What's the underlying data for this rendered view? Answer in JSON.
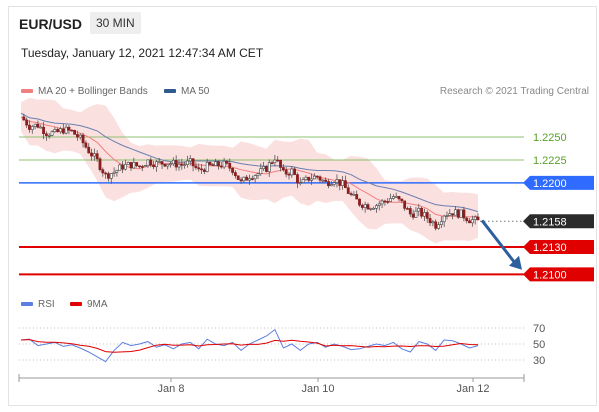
{
  "header": {
    "symbol": "EUR/USD",
    "timeframe": "30 MIN",
    "datetime": "Tuesday, January 12, 2021 12:47:34 AM CET",
    "credit": "Research © 2021 Trading Central"
  },
  "legend_main": [
    {
      "label": "MA 20 + Bollinger Bands",
      "color": "#f08080"
    },
    {
      "label": "MA 50",
      "color": "#2f5b8f"
    }
  ],
  "legend_rsi": [
    {
      "label": "RSI",
      "color": "#5b7fe0"
    },
    {
      "label": "9MA",
      "color": "#e00000"
    }
  ],
  "chart_data": [
    {
      "type": "candlestick",
      "ylim": [
        1.2083,
        1.2285
      ],
      "x_tick_labels": [
        "Jan 8",
        "Jan 10",
        "Jan 12"
      ],
      "close_path": [
        1.2272,
        1.2262,
        1.2263,
        1.2255,
        1.2254,
        1.2258,
        1.2256,
        1.2248,
        1.2235,
        1.2224,
        1.2208,
        1.2212,
        1.2218,
        1.222,
        1.2218,
        1.2224,
        1.2221,
        1.2222,
        1.2221,
        1.222,
        1.2222,
        1.2213,
        1.2218,
        1.2219,
        1.222,
        1.2215,
        1.22,
        1.2208,
        1.221,
        1.2216,
        1.2228,
        1.221,
        1.2213,
        1.2198,
        1.2205,
        1.2207,
        1.22,
        1.2204,
        1.2198,
        1.2186,
        1.2178,
        1.2175,
        1.2176,
        1.218,
        1.2185,
        1.2178,
        1.2166,
        1.2168,
        1.2162,
        1.2154,
        1.2166,
        1.2168,
        1.2166,
        1.216,
        1.2158
      ],
      "levels": [
        {
          "value": 1.225,
          "label": "1.2250",
          "kind": "resistance",
          "color": "#8dc26f"
        },
        {
          "value": 1.2225,
          "label": "1.2225",
          "kind": "resistance",
          "color": "#8dc26f"
        },
        {
          "value": 1.22,
          "label": "1.2200",
          "kind": "pivot",
          "color": "#2f6bff"
        },
        {
          "value": 1.2158,
          "label": "1.2158",
          "kind": "last_price",
          "color": "#2b2b2b"
        },
        {
          "value": 1.213,
          "label": "1.2130",
          "kind": "support",
          "color": "#e00000"
        },
        {
          "value": 1.21,
          "label": "1.2100",
          "kind": "support",
          "color": "#e00000"
        }
      ],
      "target_arrow": {
        "from": 1.2159,
        "to": 1.2104
      },
      "series": [
        {
          "name": "MA 20 + Bollinger Bands",
          "color": "#f08080"
        },
        {
          "name": "MA 50",
          "color": "#2f5b8f"
        }
      ]
    },
    {
      "type": "line",
      "ylim": [
        15,
        80
      ],
      "y_tick_labels": [
        "70",
        "50",
        "30"
      ],
      "y_ticks": [
        70,
        50,
        30
      ],
      "rsi_path": [
        55,
        56,
        48,
        50,
        52,
        47,
        49,
        45,
        40,
        34,
        28,
        42,
        52,
        48,
        50,
        53,
        46,
        49,
        44,
        50,
        52,
        44,
        56,
        50,
        48,
        52,
        42,
        50,
        55,
        60,
        68,
        45,
        50,
        42,
        50,
        52,
        46,
        50,
        47,
        43,
        44,
        47,
        50,
        48,
        52,
        44,
        40,
        53,
        50,
        42,
        55,
        54,
        50,
        45,
        48
      ],
      "series": [
        {
          "name": "RSI",
          "color": "#5b7fe0"
        },
        {
          "name": "9MA",
          "color": "#e00000"
        }
      ]
    }
  ]
}
